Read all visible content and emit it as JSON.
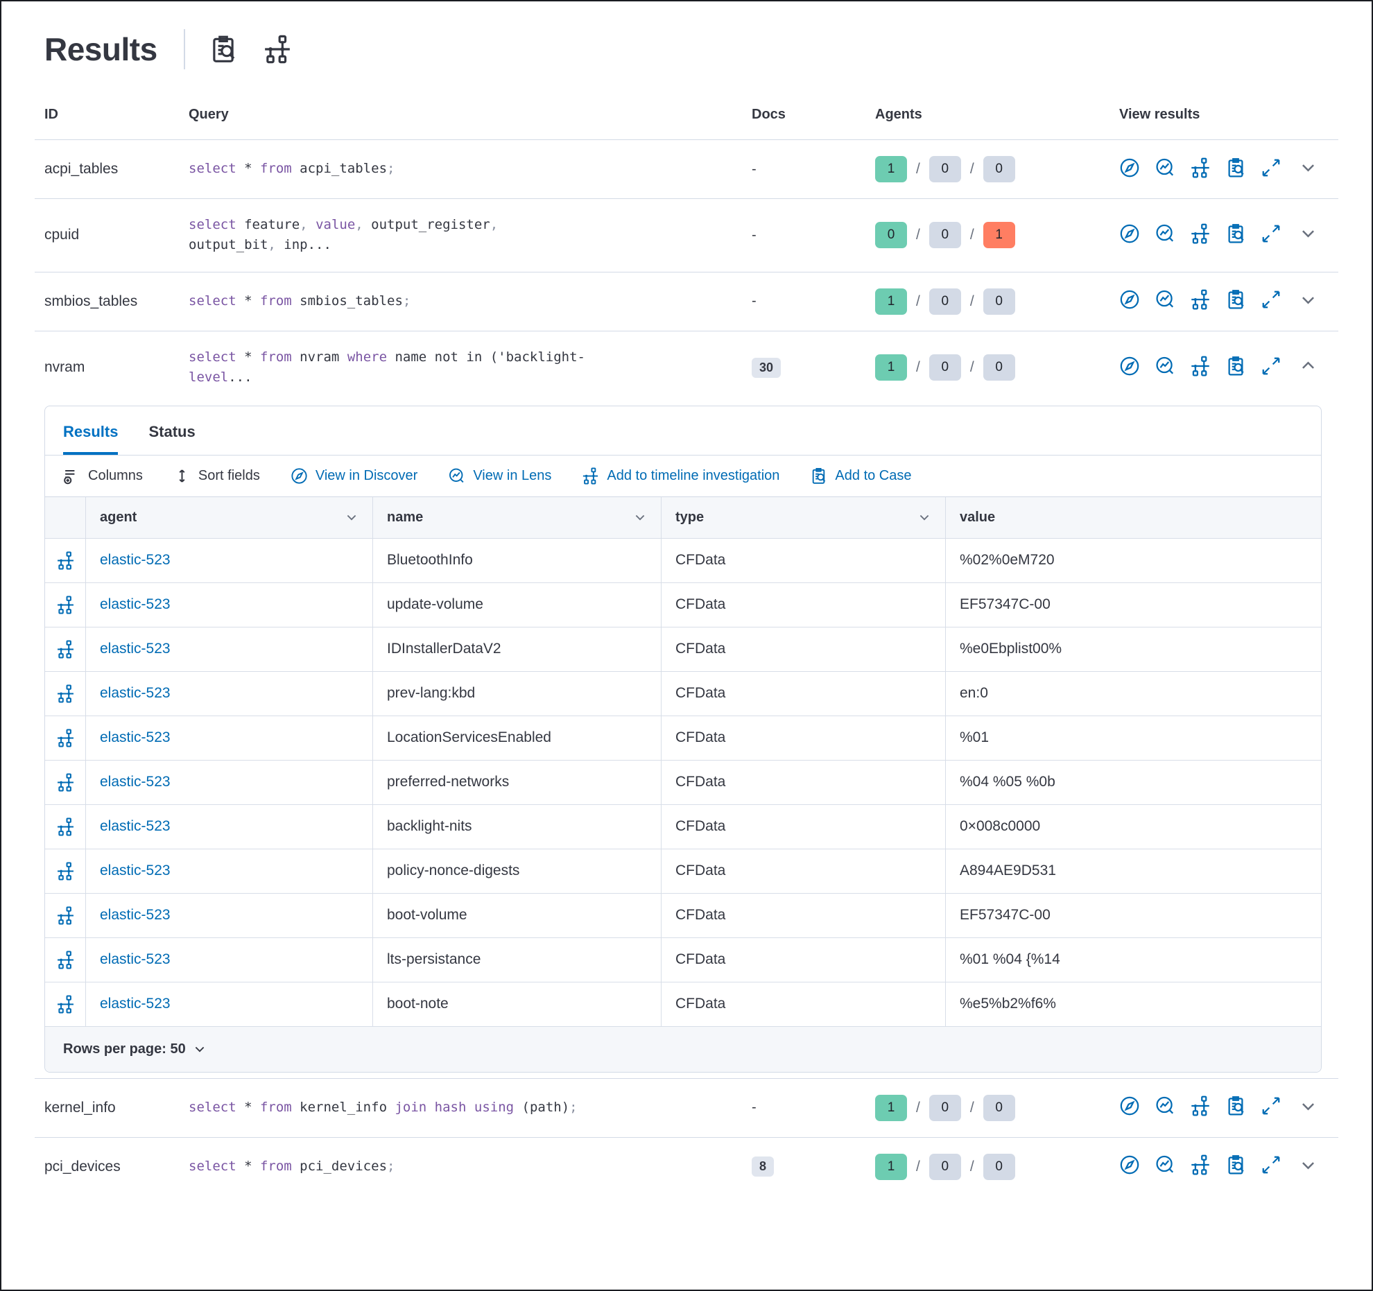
{
  "header": {
    "title": "Results"
  },
  "main_table": {
    "columns": [
      "ID",
      "Query",
      "Docs",
      "Agents",
      "View results"
    ],
    "rows_top": [
      {
        "id": "acpi_tables",
        "docs": "-",
        "docs_badge": false,
        "agents": [
          1,
          0,
          0
        ],
        "expanded": false,
        "query": [
          {
            "c": "kw",
            "t": "select"
          },
          {
            "c": "pl",
            "t": " * "
          },
          {
            "c": "kw",
            "t": "from"
          },
          {
            "c": "pl",
            "t": " acpi_tables"
          },
          {
            "c": "pu",
            "t": ";"
          }
        ]
      },
      {
        "id": "cpuid",
        "docs": "-",
        "docs_badge": false,
        "agents": [
          0,
          0,
          1
        ],
        "expanded": false,
        "query": [
          {
            "c": "kw",
            "t": "select"
          },
          {
            "c": "pl",
            "t": " feature"
          },
          {
            "c": "pu",
            "t": ","
          },
          {
            "c": "pl",
            "t": " "
          },
          {
            "c": "kw",
            "t": "value"
          },
          {
            "c": "pu",
            "t": ","
          },
          {
            "c": "pl",
            "t": " output_register"
          },
          {
            "c": "pu",
            "t": ","
          },
          {
            "c": "pl",
            "t": " output_bit"
          },
          {
            "c": "pu",
            "t": ","
          },
          {
            "c": "pl",
            "t": " inp..."
          }
        ]
      },
      {
        "id": "smbios_tables",
        "docs": "-",
        "docs_badge": false,
        "agents": [
          1,
          0,
          0
        ],
        "expanded": false,
        "query": [
          {
            "c": "kw",
            "t": "select"
          },
          {
            "c": "pl",
            "t": " * "
          },
          {
            "c": "kw",
            "t": "from"
          },
          {
            "c": "pl",
            "t": " smbios_tables"
          },
          {
            "c": "pu",
            "t": ";"
          }
        ]
      },
      {
        "id": "nvram",
        "docs": "30",
        "docs_badge": true,
        "agents": [
          1,
          0,
          0
        ],
        "expanded": true,
        "query": [
          {
            "c": "kw",
            "t": "select"
          },
          {
            "c": "pl",
            "t": " * "
          },
          {
            "c": "kw",
            "t": "from"
          },
          {
            "c": "pl",
            "t": " nvram "
          },
          {
            "c": "kw",
            "t": "where"
          },
          {
            "c": "pl",
            "t": " name not in ('backlight-"
          },
          {
            "c": "kw",
            "t": "level"
          },
          {
            "c": "pl",
            "t": "..."
          }
        ]
      }
    ],
    "rows_bottom": [
      {
        "id": "kernel_info",
        "docs": "-",
        "docs_badge": false,
        "agents": [
          1,
          0,
          0
        ],
        "expanded": false,
        "query": [
          {
            "c": "kw",
            "t": "select"
          },
          {
            "c": "pl",
            "t": " * "
          },
          {
            "c": "kw",
            "t": "from"
          },
          {
            "c": "pl",
            "t": " kernel_info "
          },
          {
            "c": "kw",
            "t": "join"
          },
          {
            "c": "pl",
            "t": " "
          },
          {
            "c": "kw",
            "t": "hash"
          },
          {
            "c": "pl",
            "t": " "
          },
          {
            "c": "kw",
            "t": "using"
          },
          {
            "c": "pl",
            "t": " (path)"
          },
          {
            "c": "pu",
            "t": ";"
          }
        ]
      },
      {
        "id": "pci_devices",
        "docs": "8",
        "docs_badge": true,
        "agents": [
          1,
          0,
          0
        ],
        "expanded": false,
        "query": [
          {
            "c": "kw",
            "t": "select"
          },
          {
            "c": "pl",
            "t": " * "
          },
          {
            "c": "kw",
            "t": "from"
          },
          {
            "c": "pl",
            "t": " pci_devices"
          },
          {
            "c": "pu",
            "t": ";"
          }
        ]
      }
    ]
  },
  "expanded_panel": {
    "tabs": [
      {
        "label": "Results"
      },
      {
        "label": "Status"
      }
    ],
    "toolbar": [
      {
        "label": "Columns"
      },
      {
        "label": "Sort fields"
      },
      {
        "label": "View in Discover"
      },
      {
        "label": "View in Lens"
      },
      {
        "label": "Add to timeline investigation"
      },
      {
        "label": "Add to Case"
      }
    ],
    "grid": {
      "columns": [
        "agent",
        "name",
        "type",
        "value"
      ],
      "rows": [
        {
          "agent": "elastic-523",
          "name": "BluetoothInfo",
          "type": "CFData",
          "value": "%02%0eM720"
        },
        {
          "agent": "elastic-523",
          "name": "update-volume",
          "type": "CFData",
          "value": "EF57347C-00"
        },
        {
          "agent": "elastic-523",
          "name": "IDInstallerDataV2",
          "type": "CFData",
          "value": "%e0Ebplist00%"
        },
        {
          "agent": "elastic-523",
          "name": "prev-lang:kbd",
          "type": "CFData",
          "value": "en:0"
        },
        {
          "agent": "elastic-523",
          "name": "LocationServicesEnabled",
          "type": "CFData",
          "value": "%01"
        },
        {
          "agent": "elastic-523",
          "name": "preferred-networks",
          "type": "CFData",
          "value": "%04 %05 %0b"
        },
        {
          "agent": "elastic-523",
          "name": "backlight-nits",
          "type": "CFData",
          "value": "0×008c0000"
        },
        {
          "agent": "elastic-523",
          "name": "policy-nonce-digests",
          "type": "CFData",
          "value": "A894AE9D531"
        },
        {
          "agent": "elastic-523",
          "name": "boot-volume",
          "type": "CFData",
          "value": "EF57347C-00"
        },
        {
          "agent": "elastic-523",
          "name": "lts-persistance",
          "type": "CFData",
          "value": "%01 %04 {%14"
        },
        {
          "agent": "elastic-523",
          "name": "boot-note",
          "type": "CFData",
          "value": "%e5%b2%f6%"
        }
      ]
    },
    "footer": {
      "rows_per_page_label": "Rows per page: 50"
    }
  },
  "colors": {
    "primary_blue": "#006bb4",
    "active_tab_blue": "#0071c2",
    "success_badge": "#6dccb1",
    "neutral_badge": "#d3dae6",
    "danger_badge": "#ff7e62",
    "sql_keyword": "#7a55a3",
    "text": "#343741"
  }
}
